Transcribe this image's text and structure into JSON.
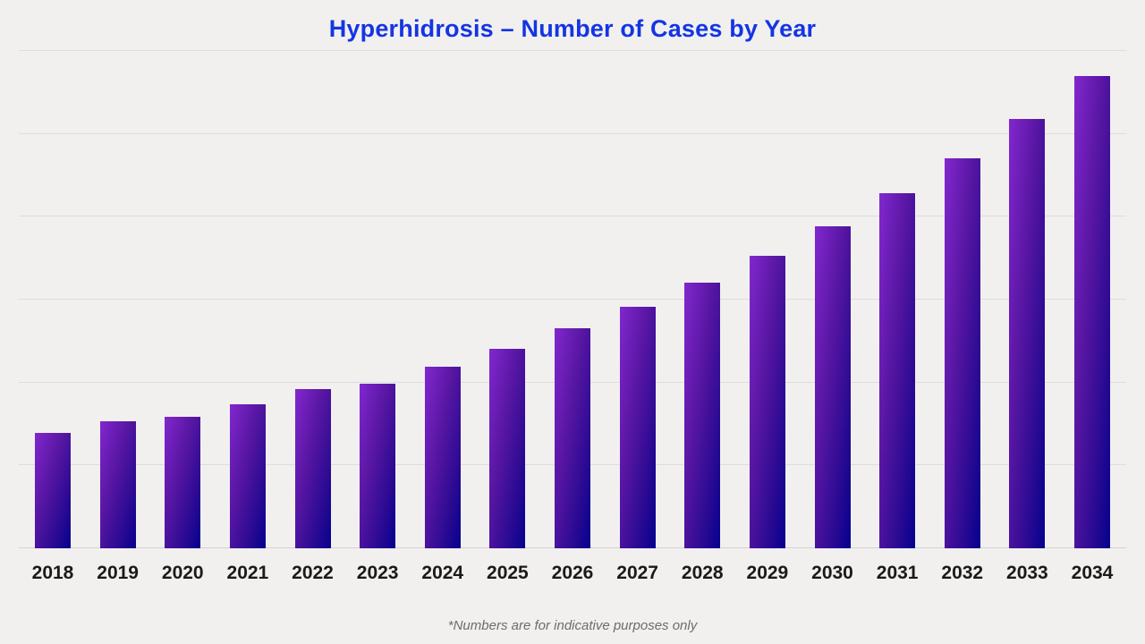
{
  "page": {
    "background_color": "#f1f0ee",
    "gridline_color": "#dedddb",
    "baseline_color": "#d4d3d1",
    "x_label_color": "#1a1a1a",
    "footnote_color": "#6d6c6a"
  },
  "chart_data": {
    "type": "bar",
    "title": "Hyperhidrosis – Number of Cases by Year",
    "title_color": "#1435e4",
    "categories": [
      "2018",
      "2019",
      "2020",
      "2021",
      "2022",
      "2023",
      "2024",
      "2025",
      "2026",
      "2027",
      "2028",
      "2029",
      "2030",
      "2031",
      "2032",
      "2033",
      "2034"
    ],
    "values": [
      139,
      153,
      159,
      174,
      192,
      199,
      219,
      241,
      265,
      291,
      320,
      353,
      388,
      428,
      470,
      518,
      570
    ],
    "xlabel": "",
    "ylabel": "",
    "ylim": [
      0,
      600
    ],
    "gridline_step": 100,
    "grid": "horizontal",
    "y_tick_labels_visible": false,
    "legend": "none",
    "bar_gradient": [
      "#8227cf",
      "#5a17a4",
      "#2e0b93",
      "#05018e"
    ],
    "footnote": "*Numbers are for indicative purposes only"
  }
}
